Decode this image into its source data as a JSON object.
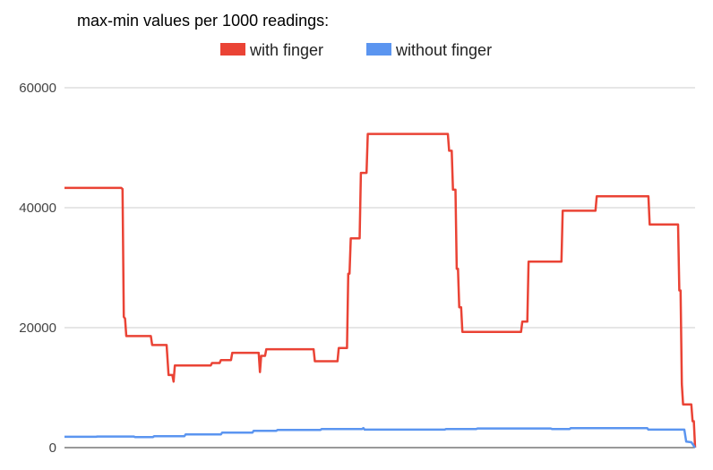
{
  "chart_data": {
    "type": "line",
    "title": "max-min values per 1000 readings:",
    "xlabel": "",
    "ylabel": "",
    "ylim": [
      0,
      60000
    ],
    "y_ticks": [
      "0",
      "20000",
      "40000",
      "60000"
    ],
    "xlim": [
      0,
      100
    ],
    "grid": true,
    "legend_position": "top",
    "series": [
      {
        "name": "with finger",
        "color": "#ea4335",
        "points": [
          [
            0,
            43300
          ],
          [
            9,
            43300
          ],
          [
            9.2,
            43100
          ],
          [
            9.4,
            21800
          ],
          [
            9.6,
            21500
          ],
          [
            9.8,
            18600
          ],
          [
            13.7,
            18600
          ],
          [
            13.9,
            17100
          ],
          [
            16.2,
            17100
          ],
          [
            16.5,
            12100
          ],
          [
            17.1,
            12100
          ],
          [
            17.3,
            11000
          ],
          [
            17.5,
            13700
          ],
          [
            23.2,
            13700
          ],
          [
            23.4,
            14100
          ],
          [
            24.6,
            14100
          ],
          [
            24.8,
            14600
          ],
          [
            26.4,
            14600
          ],
          [
            26.6,
            15800
          ],
          [
            30.8,
            15800
          ],
          [
            31.0,
            12600
          ],
          [
            31.2,
            15300
          ],
          [
            31.8,
            15300
          ],
          [
            32.0,
            16400
          ],
          [
            39.5,
            16400
          ],
          [
            39.7,
            14400
          ],
          [
            43.3,
            14400
          ],
          [
            43.5,
            16600
          ],
          [
            44.8,
            16600
          ],
          [
            45.0,
            29000
          ],
          [
            45.2,
            29000
          ],
          [
            45.4,
            34900
          ],
          [
            46.8,
            34900
          ],
          [
            47.0,
            45800
          ],
          [
            47.9,
            45800
          ],
          [
            48.1,
            52300
          ],
          [
            60.8,
            52300
          ],
          [
            61.0,
            49500
          ],
          [
            61.4,
            49500
          ],
          [
            61.6,
            43000
          ],
          [
            62.0,
            43000
          ],
          [
            62.2,
            29800
          ],
          [
            62.4,
            29800
          ],
          [
            62.6,
            23400
          ],
          [
            62.9,
            23400
          ],
          [
            63.1,
            19300
          ],
          [
            72.4,
            19300
          ],
          [
            72.6,
            21000
          ],
          [
            73.4,
            21000
          ],
          [
            73.6,
            31000
          ],
          [
            78.8,
            31000
          ],
          [
            79.0,
            39500
          ],
          [
            84.2,
            39500
          ],
          [
            84.4,
            41900
          ],
          [
            92.6,
            41900
          ],
          [
            92.8,
            37200
          ],
          [
            97.3,
            37200
          ],
          [
            97.5,
            26200
          ],
          [
            97.7,
            26200
          ],
          [
            97.9,
            10600
          ],
          [
            98.1,
            7200
          ],
          [
            99.4,
            7200
          ],
          [
            99.6,
            4400
          ],
          [
            99.8,
            4400
          ],
          [
            100,
            0
          ]
        ]
      },
      {
        "name": "without finger",
        "color": "#5b95f0",
        "points": [
          [
            0,
            1800
          ],
          [
            5,
            1800
          ],
          [
            5.2,
            1850
          ],
          [
            11,
            1850
          ],
          [
            11.2,
            1750
          ],
          [
            14,
            1750
          ],
          [
            14.2,
            1900
          ],
          [
            19,
            1900
          ],
          [
            19.2,
            2200
          ],
          [
            24.8,
            2200
          ],
          [
            25,
            2500
          ],
          [
            29.8,
            2500
          ],
          [
            30,
            2800
          ],
          [
            33.6,
            2800
          ],
          [
            33.8,
            2950
          ],
          [
            40.6,
            2950
          ],
          [
            40.8,
            3100
          ],
          [
            47.2,
            3100
          ],
          [
            47.4,
            3250
          ],
          [
            47.6,
            3000
          ],
          [
            60.3,
            3000
          ],
          [
            60.5,
            3100
          ],
          [
            65.3,
            3100
          ],
          [
            65.5,
            3200
          ],
          [
            77.1,
            3200
          ],
          [
            77.3,
            3100
          ],
          [
            80.1,
            3100
          ],
          [
            80.3,
            3250
          ],
          [
            92.4,
            3250
          ],
          [
            92.6,
            3000
          ],
          [
            98.3,
            3000
          ],
          [
            98.6,
            1000
          ],
          [
            99.4,
            900
          ],
          [
            100,
            0
          ]
        ]
      }
    ]
  }
}
